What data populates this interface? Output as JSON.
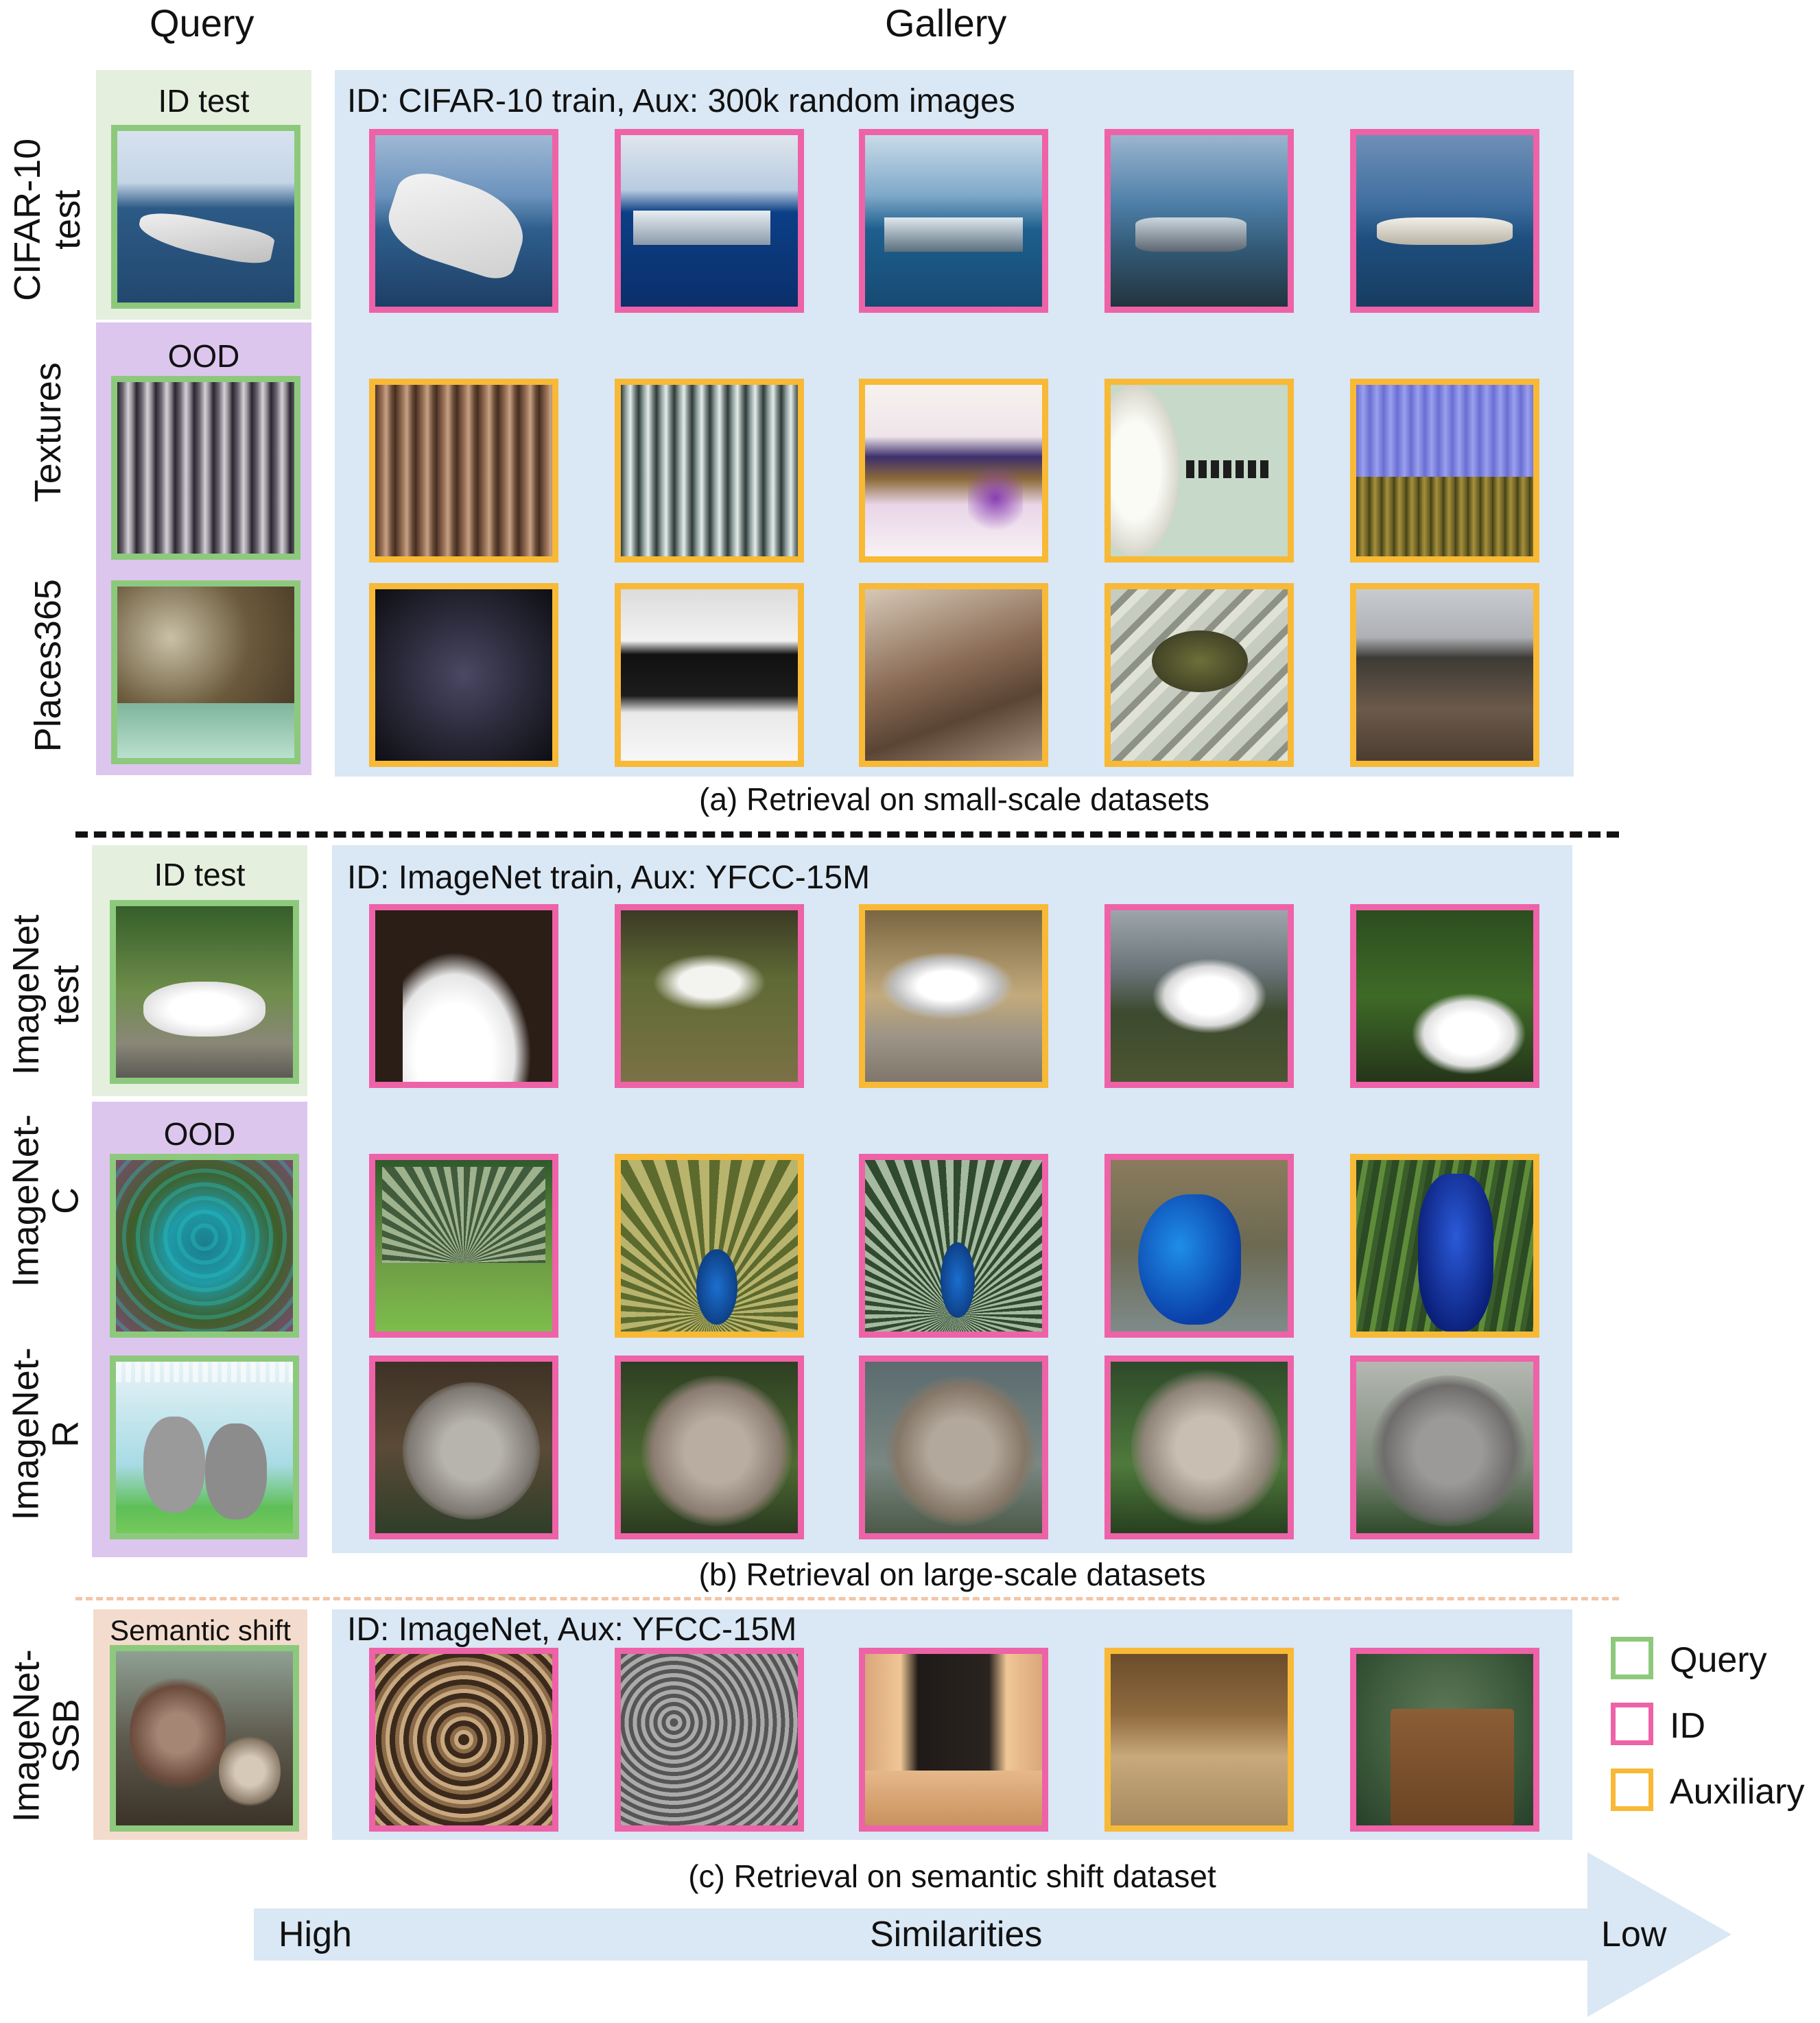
{
  "headers": {
    "query": "Query",
    "gallery": "Gallery"
  },
  "row_labels": {
    "cifar10": "CIFAR-10 test",
    "cifar10_l1": "CIFAR-10",
    "cifar10_l2": "test",
    "textures": "Textures",
    "places": "Places365",
    "imagenet_l1": "ImageNet",
    "imagenet_l2": "test",
    "imagenetc_l1": "ImageNet-",
    "imagenetc_l2": "C",
    "imagenetr_l1": "ImageNet-",
    "imagenetr_l2": "R",
    "ssb_l1": "ImageNet-",
    "ssb_l2": "SSB"
  },
  "query_labels": {
    "id_test_a": "ID test",
    "ood_a": "OOD",
    "id_test_b": "ID test",
    "ood_b": "OOD",
    "semantic_shift": "Semantic shift"
  },
  "gallery_titles": {
    "a": "ID: CIFAR-10 train, Aux: 300k random images",
    "b": "ID: ImageNet train, Aux: YFCC-15M",
    "c": "ID: ImageNet, Aux: YFCC-15M"
  },
  "captions": {
    "a": "(a) Retrieval on small-scale datasets",
    "b": "(b) Retrieval on large-scale datasets",
    "c": "(c) Retrieval on semantic shift dataset"
  },
  "arrow": {
    "high": "High",
    "middle": "Similarities",
    "low": "Low"
  },
  "legend": {
    "query": "Query",
    "id": "ID",
    "auxiliary": "Auxiliary",
    "query_color": "#8dc97c",
    "id_color": "#ee62a8",
    "aux_color": "#f8b936"
  },
  "rows": [
    {
      "name": "cifar10-test",
      "gallery": [
        "ID",
        "ID",
        "ID",
        "ID",
        "ID"
      ]
    },
    {
      "name": "textures",
      "gallery": [
        "Auxiliary",
        "Auxiliary",
        "Auxiliary",
        "Auxiliary",
        "Auxiliary"
      ]
    },
    {
      "name": "places365",
      "gallery": [
        "Auxiliary",
        "Auxiliary",
        "Auxiliary",
        "Auxiliary",
        "Auxiliary"
      ]
    },
    {
      "name": "imagenet-test",
      "gallery": [
        "ID",
        "ID",
        "Auxiliary",
        "ID",
        "ID"
      ]
    },
    {
      "name": "imagenet-c",
      "gallery": [
        "ID",
        "Auxiliary",
        "ID",
        "ID",
        "Auxiliary"
      ]
    },
    {
      "name": "imagenet-r",
      "gallery": [
        "ID",
        "ID",
        "ID",
        "ID",
        "ID"
      ]
    },
    {
      "name": "imagenet-ssb",
      "gallery": [
        "ID",
        "ID",
        "ID",
        "Auxiliary",
        "ID"
      ]
    }
  ]
}
